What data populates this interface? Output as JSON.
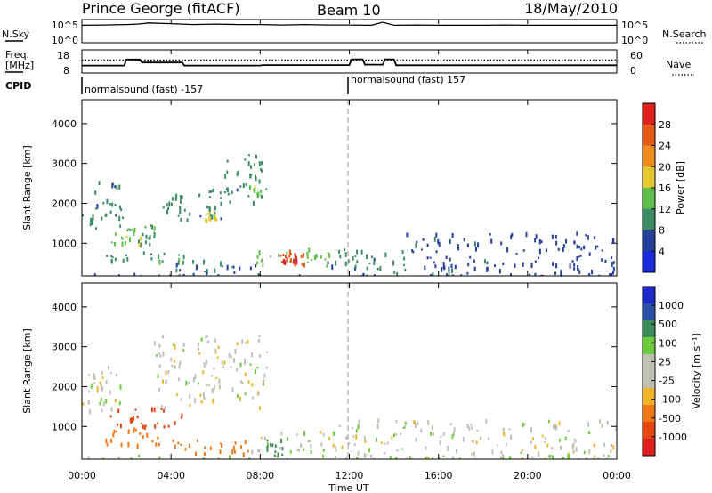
{
  "header": {
    "station": "Prince George (fitACF)",
    "beam": "Beam 10",
    "date": "18/May/2010"
  },
  "sky_panel": {
    "left_label": "N.Sky",
    "right_label": "N.Search",
    "left_ticks": [
      "10^5",
      "10^0"
    ],
    "right_ticks": [
      "10^5",
      "10^0"
    ]
  },
  "freq_panel": {
    "left_label_line1": "Freq.",
    "left_label_line2": "[MHz]",
    "right_label": "Nave",
    "left_ticks": [
      "18",
      "8"
    ],
    "right_ticks": [
      "60",
      "0"
    ]
  },
  "cpid": {
    "label": "CPID",
    "segments": [
      "normalsound (fast) -157",
      "normalsound (fast) 157"
    ]
  },
  "colors": {
    "power_scale": [
      "#1a2bdc",
      "#24409a",
      "#3c8c64",
      "#5cc048",
      "#e6c832",
      "#f08c1e",
      "#e65a14",
      "#e01e1e"
    ],
    "velocity_scale": [
      "#1e28c8",
      "#2a50aa",
      "#3c8c5a",
      "#6ccc3c",
      "#c0c0b4",
      "#c0c0b4",
      "#f0b428",
      "#f07814",
      "#e64614",
      "#e01e1e"
    ],
    "gray_dash": "#9a9a9a"
  },
  "chart_data": [
    {
      "type": "line",
      "title": "N.Sky / N.Search",
      "x_unit": "hours UT",
      "log_scale": true,
      "ylim": [
        1,
        100000
      ],
      "x": [
        0,
        1,
        2,
        2.5,
        3,
        4,
        5,
        6,
        7,
        8,
        9,
        10,
        11,
        12,
        13,
        13.5,
        14,
        15,
        16,
        17,
        18,
        19,
        20,
        21,
        22,
        23,
        24
      ],
      "series": [
        {
          "values": [
            10000,
            12000,
            15000,
            20000,
            40000,
            25000,
            15000,
            20000,
            15000,
            15000,
            12000,
            15000,
            12000,
            12000,
            10000,
            60000,
            10000,
            12000,
            10000,
            10000,
            10000,
            12000,
            10000,
            10000,
            10000,
            10000,
            10000
          ]
        }
      ]
    },
    {
      "type": "line",
      "title": "Freq. / Nave",
      "x_unit": "hours UT",
      "ylim": [
        8,
        18
      ],
      "y2lim": [
        0,
        60
      ],
      "freq_x": [
        0,
        1.9,
        2.0,
        2.6,
        2.7,
        4.5,
        4.6,
        8.0,
        8.1,
        12.0,
        12.1,
        12.6,
        12.7,
        13.5,
        13.6,
        14.0,
        14.1,
        24
      ],
      "freq_values": [
        11.1,
        11.1,
        13.9,
        13.9,
        12.5,
        12.5,
        11.1,
        11.1,
        11.3,
        11.3,
        14.0,
        14.0,
        11.5,
        11.5,
        14.0,
        14.0,
        11.2,
        11.2
      ],
      "nave_level": 34
    },
    {
      "type": "heatmap",
      "title": "Power",
      "xlabel": "",
      "ylabel": "Slant Range [km]",
      "xlim": [
        0,
        24
      ],
      "ylim": [
        180,
        4600
      ],
      "yticks": [
        1000,
        2000,
        3000,
        4000
      ],
      "colorbar_label": "Power [dB]",
      "colorbar_ticks": [
        "28",
        "24",
        "20",
        "16",
        "12",
        "8",
        "4"
      ],
      "colorbar_range": [
        0,
        32
      ],
      "regions": [
        {
          "x0": 0,
          "x1": 0.5,
          "y0": 1500,
          "y1": 1750,
          "v": 10
        },
        {
          "x0": 0.5,
          "x1": 1.8,
          "y0": 1400,
          "y1": 2600,
          "v": 9
        },
        {
          "x0": 1.8,
          "x1": 3.4,
          "y0": 1000,
          "y1": 1500,
          "v": 11
        },
        {
          "x0": 1.2,
          "x1": 2.6,
          "y0": 1000,
          "y1": 1400,
          "v": 16
        },
        {
          "x0": 3.4,
          "x1": 4.5,
          "y0": 1800,
          "y1": 2300,
          "v": 10
        },
        {
          "x0": 4.3,
          "x1": 6.3,
          "y0": 1600,
          "y1": 2400,
          "v": 9
        },
        {
          "x0": 5.5,
          "x1": 6.0,
          "y0": 1600,
          "y1": 1800,
          "v": 18
        },
        {
          "x0": 6.3,
          "x1": 8.3,
          "y0": 2000,
          "y1": 3300,
          "v": 9
        },
        {
          "x0": 7.5,
          "x1": 8.0,
          "y0": 2200,
          "y1": 2500,
          "v": 15
        },
        {
          "x0": 0.8,
          "x1": 5.0,
          "y0": 550,
          "y1": 800,
          "v": 11
        },
        {
          "x0": 4.0,
          "x1": 8.0,
          "y0": 180,
          "y1": 600,
          "v": 8
        },
        {
          "x0": 7.8,
          "x1": 11.2,
          "y0": 450,
          "y1": 900,
          "v": 14
        },
        {
          "x0": 8.8,
          "x1": 10.0,
          "y0": 500,
          "y1": 850,
          "v": 26
        },
        {
          "x0": 9.0,
          "x1": 9.8,
          "y0": 550,
          "y1": 800,
          "v": 30
        },
        {
          "x0": 11,
          "x1": 14.5,
          "y0": 180,
          "y1": 900,
          "v": 9
        },
        {
          "x0": 14.5,
          "x1": 24,
          "y0": 180,
          "y1": 1300,
          "v": 7
        },
        {
          "x0": 0,
          "x1": 24,
          "y0": 180,
          "y1": 260,
          "v": 5
        }
      ]
    },
    {
      "type": "heatmap",
      "title": "Velocity",
      "xlabel": "Time UT",
      "ylabel": "Slant Range [km]",
      "xlim": [
        0,
        24
      ],
      "ylim": [
        180,
        4600
      ],
      "yticks": [
        1000,
        2000,
        3000,
        4000
      ],
      "xticks": [
        "00:00",
        "04:00",
        "08:00",
        "12:00",
        "16:00",
        "20:00",
        "00:00"
      ],
      "colorbar_label": "Velocity [m s⁻¹]",
      "colorbar_ticks": [
        "1000",
        "500",
        "100",
        "25",
        "-25",
        "-100",
        "-500",
        "-1000"
      ],
      "regions": [
        {
          "x0": 0,
          "x1": 1.8,
          "y0": 1400,
          "y1": 2600,
          "v": 0
        },
        {
          "x0": 1.2,
          "x1": 4.5,
          "y0": 1000,
          "y1": 1500,
          "v": -700
        },
        {
          "x0": 1.0,
          "x1": 3.5,
          "y0": 550,
          "y1": 1000,
          "v": -300
        },
        {
          "x0": 3.2,
          "x1": 8.3,
          "y0": 1500,
          "y1": 3300,
          "v": 0
        },
        {
          "x0": 4.0,
          "x1": 7.5,
          "y0": 350,
          "y1": 700,
          "v": -150
        },
        {
          "x0": 7.5,
          "x1": 11.5,
          "y0": 400,
          "y1": 900,
          "v": 0
        },
        {
          "x0": 8.0,
          "x1": 9.0,
          "y0": 300,
          "y1": 700,
          "v": 200
        },
        {
          "x0": 11.5,
          "x1": 24,
          "y0": 180,
          "y1": 1200,
          "v": 0
        },
        {
          "x0": 0,
          "x1": 24,
          "y0": 180,
          "y1": 300,
          "v": 60
        }
      ]
    }
  ]
}
